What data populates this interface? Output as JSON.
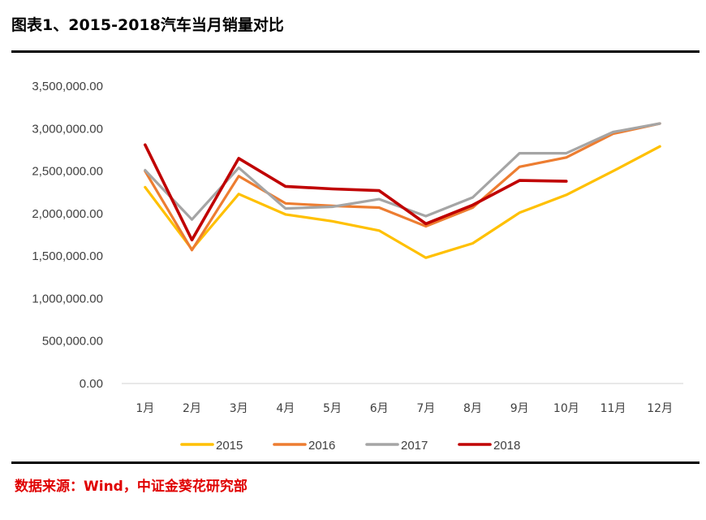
{
  "title": "图表1、2015-2018汽车当月销量对比",
  "source": "数据来源：Wind，中证金葵花研究部",
  "chart_data": {
    "type": "line",
    "title": "图表1、2015-2018汽车当月销量对比",
    "xlabel": "",
    "ylabel": "",
    "ylim": [
      0,
      3500000
    ],
    "yticks": [
      0,
      500000,
      1000000,
      1500000,
      2000000,
      2500000,
      3000000,
      3500000
    ],
    "ytick_labels": [
      "0.00",
      "500,000.00",
      "1,000,000.00",
      "1,500,000.00",
      "2,000,000.00",
      "2,500,000.00",
      "3,000,000.00",
      "3,500,000.00"
    ],
    "categories": [
      "1月",
      "2月",
      "3月",
      "4月",
      "5月",
      "6月",
      "7月",
      "8月",
      "9月",
      "10月",
      "11月",
      "12月"
    ],
    "grid": false,
    "legend_position": "bottom",
    "series": [
      {
        "name": "2015",
        "color": "#FFC000",
        "values": [
          2310000,
          1580000,
          2230000,
          1990000,
          1910000,
          1800000,
          1480000,
          1650000,
          2010000,
          2220000,
          2500000,
          2790000
        ]
      },
      {
        "name": "2016",
        "color": "#ED7D31",
        "values": [
          2500000,
          1570000,
          2440000,
          2120000,
          2090000,
          2070000,
          1850000,
          2070000,
          2550000,
          2660000,
          2940000,
          3060000
        ]
      },
      {
        "name": "2017",
        "color": "#A5A5A5",
        "values": [
          2510000,
          1930000,
          2540000,
          2060000,
          2080000,
          2170000,
          1970000,
          2190000,
          2710000,
          2710000,
          2960000,
          3060000
        ]
      },
      {
        "name": "2018",
        "color": "#C00000",
        "values": [
          2810000,
          1690000,
          2650000,
          2320000,
          2290000,
          2270000,
          1880000,
          2100000,
          2390000,
          2380000,
          null,
          null
        ]
      }
    ]
  }
}
